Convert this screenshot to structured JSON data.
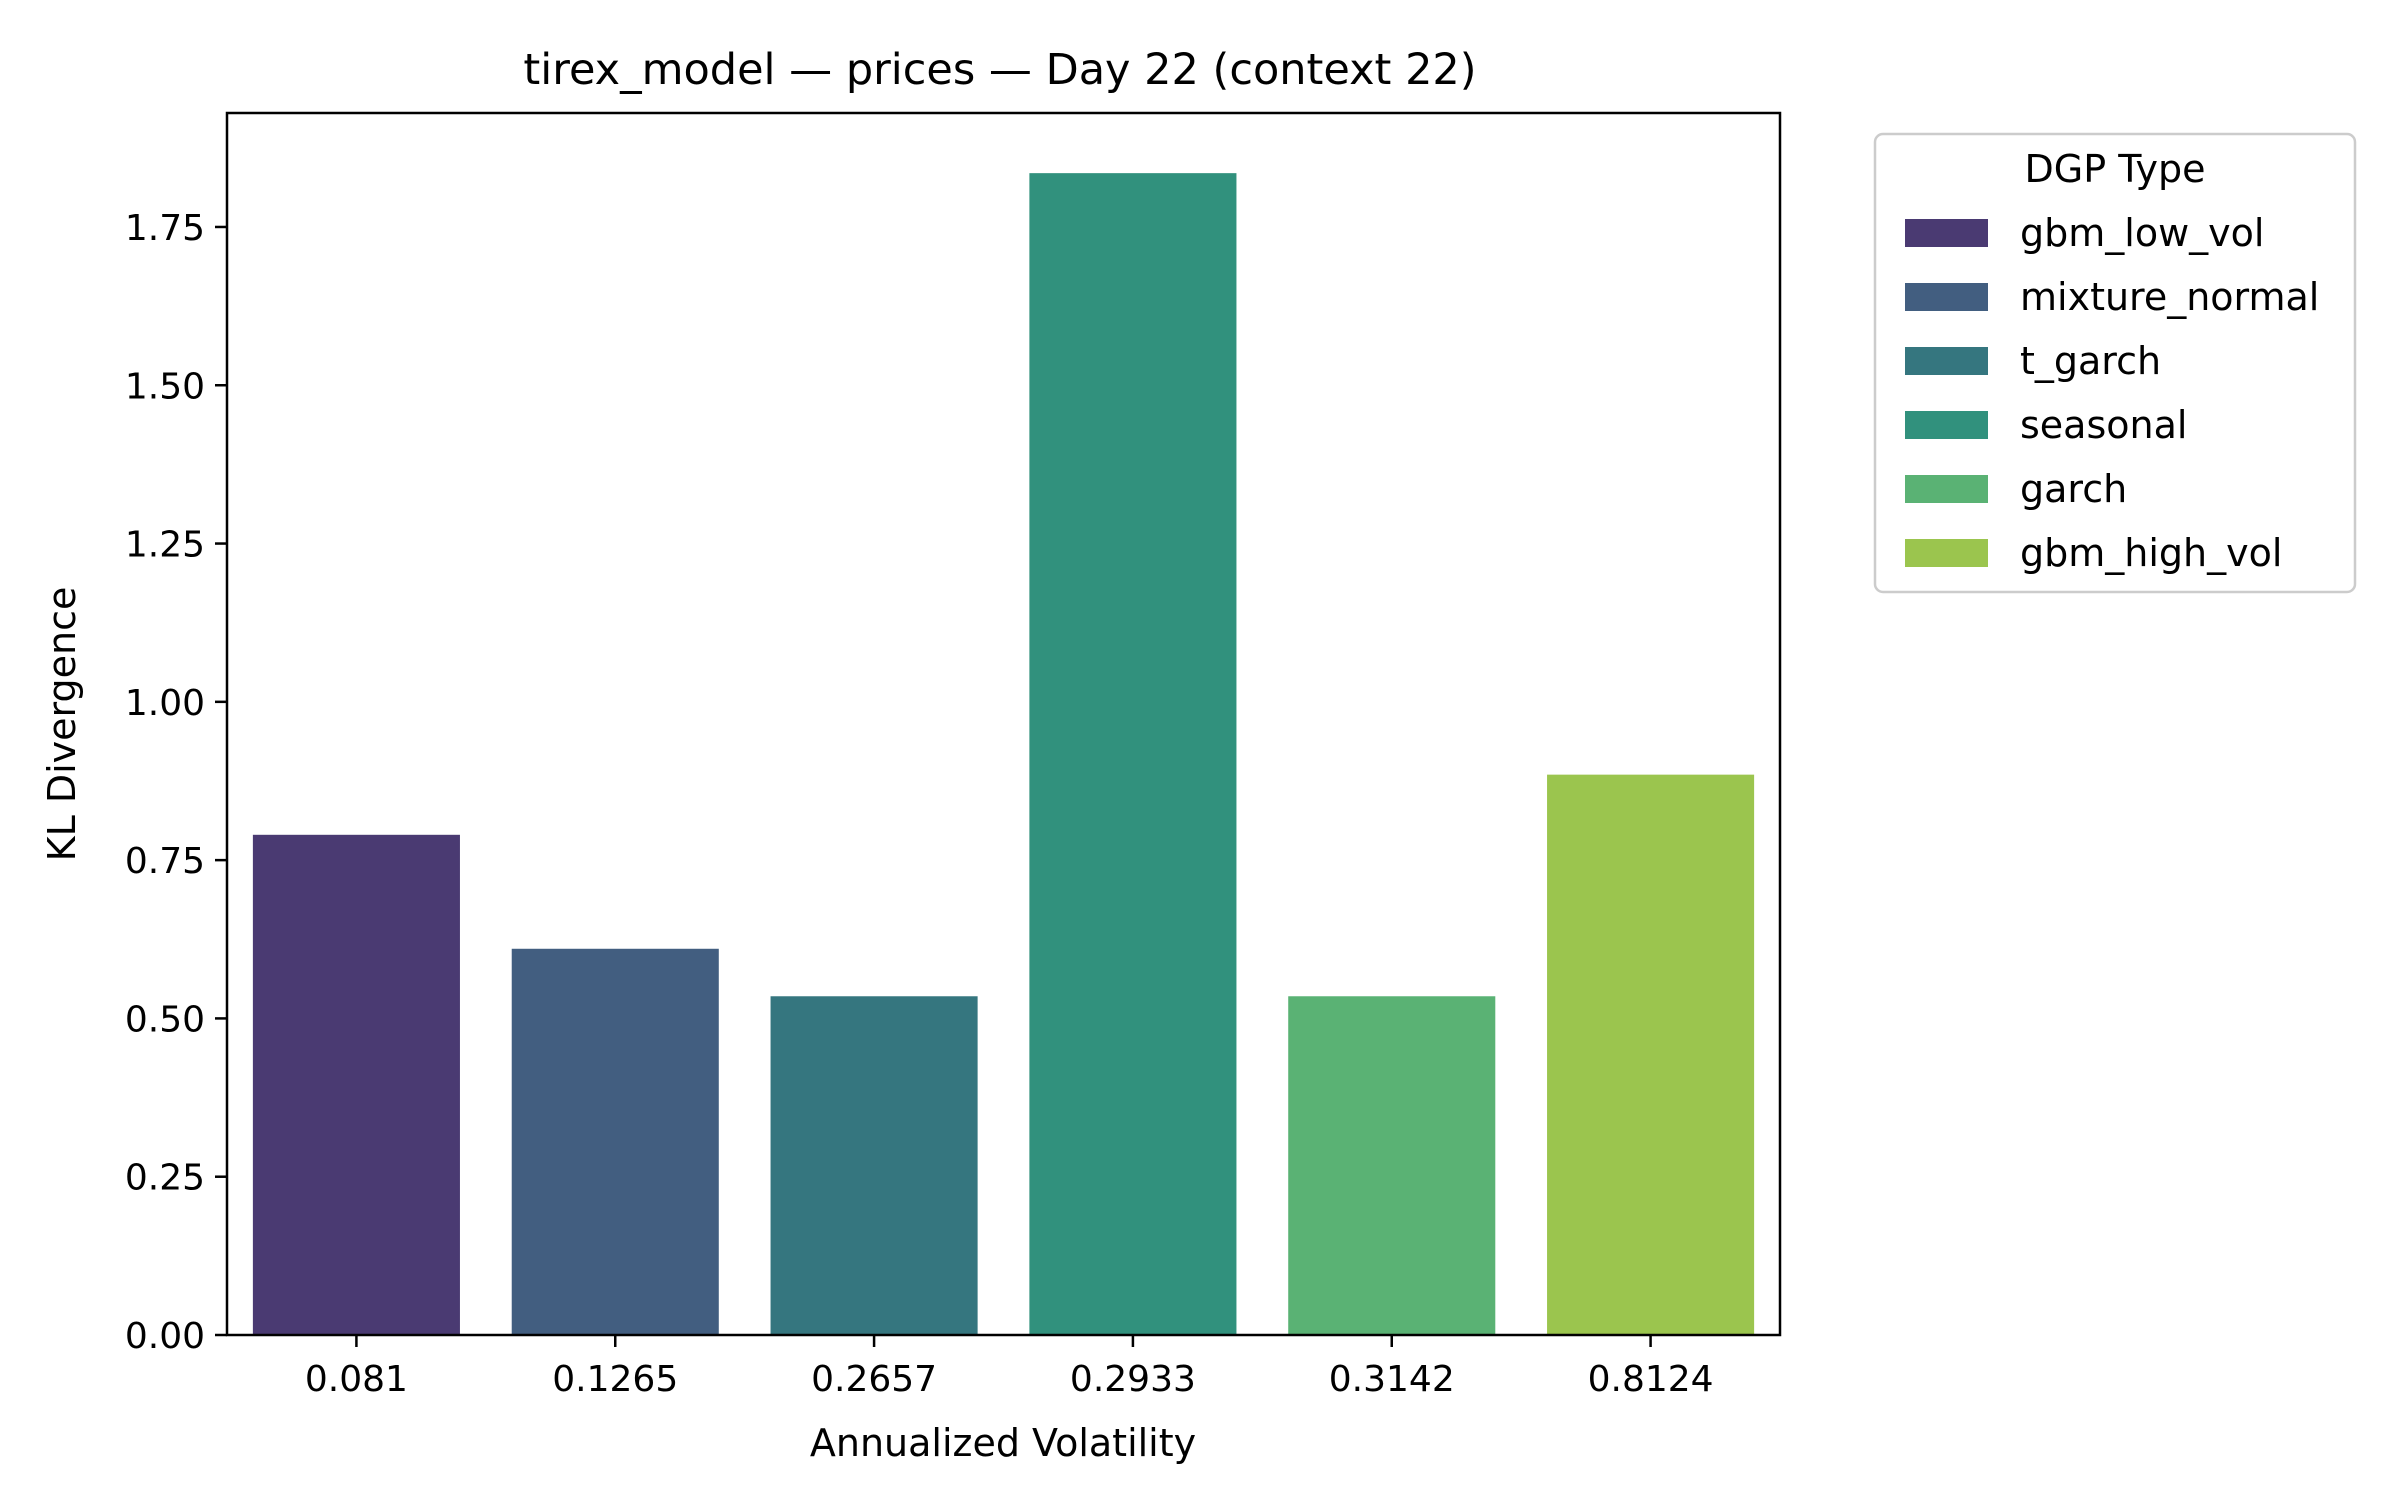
{
  "chart_data": {
    "type": "bar",
    "title": "tirex_model — prices — Day 22 (context 22)",
    "xlabel": "Annualized Volatility",
    "ylabel": "KL Divergence",
    "categories": [
      "0.081",
      "0.1265",
      "0.2657",
      "0.2933",
      "0.3142",
      "0.8124"
    ],
    "values": [
      0.79,
      0.61,
      0.535,
      1.835,
      0.535,
      0.885
    ],
    "series_names": [
      "gbm_low_vol",
      "mixture_normal",
      "t_garch",
      "seasonal",
      "garch",
      "gbm_high_vol"
    ],
    "colors": [
      "#4a3a72",
      "#425e80",
      "#35767f",
      "#31917d",
      "#5ab274",
      "#9bc54e"
    ],
    "ylim": [
      0,
      1.93
    ],
    "yticks": [
      "0.00",
      "0.25",
      "0.50",
      "0.75",
      "1.00",
      "1.25",
      "1.50",
      "1.75"
    ],
    "grid": false,
    "legend": {
      "title": "DGP Type",
      "placement": "outside-right-top",
      "entries": [
        "gbm_low_vol",
        "mixture_normal",
        "t_garch",
        "seasonal",
        "garch",
        "gbm_high_vol"
      ]
    }
  }
}
